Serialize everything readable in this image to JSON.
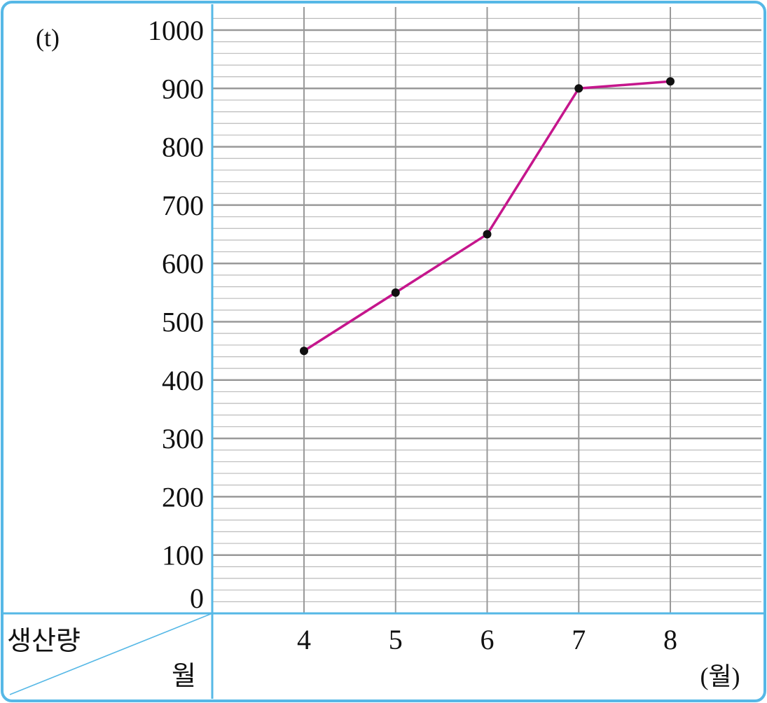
{
  "chart_data": {
    "type": "line",
    "categories": [
      "4",
      "5",
      "6",
      "7",
      "8"
    ],
    "series": [
      {
        "values": [
          450,
          550,
          650,
          900,
          912
        ]
      }
    ],
    "y_ticks": [
      "0",
      "100",
      "200",
      "300",
      "400",
      "500",
      "600",
      "700",
      "800",
      "900",
      "1000"
    ],
    "ylim": [
      0,
      1000
    ],
    "minor_step": 20,
    "ylabel": "(t)",
    "xlabel": "(월)",
    "corner_row_label": "생산량",
    "corner_col_label": "월",
    "grid": true,
    "legend": "none"
  },
  "colors": {
    "frame": "#56B8E6",
    "frame_fill": "#E7F5FC",
    "major_grid": "#999999",
    "minor_grid": "#BBBBBB",
    "line": "#C5168C",
    "marker": "#111111"
  }
}
